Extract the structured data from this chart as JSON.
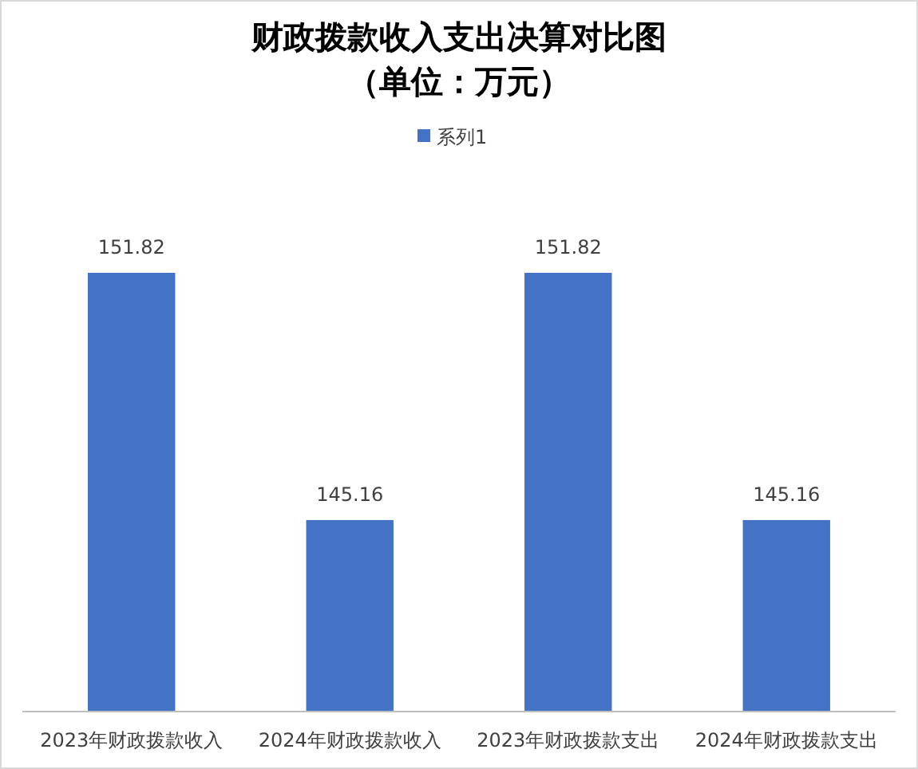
{
  "chart_data": {
    "type": "bar",
    "title": "财政拨款收入支出决算对比图",
    "subtitle": "（单位：万元）",
    "categories": [
      "2023年财政拨款收入",
      "2024年财政拨款收入",
      "2023年财政拨款支出",
      "2024年财政拨款支出"
    ],
    "series": [
      {
        "name": "系列1",
        "color": "#4472c4",
        "values": [
          151.82,
          145.16,
          151.82,
          145.16
        ]
      }
    ],
    "ylim": [
      140,
      151.82
    ],
    "tick_labels": "x",
    "data_labels": true,
    "legend": "top"
  }
}
